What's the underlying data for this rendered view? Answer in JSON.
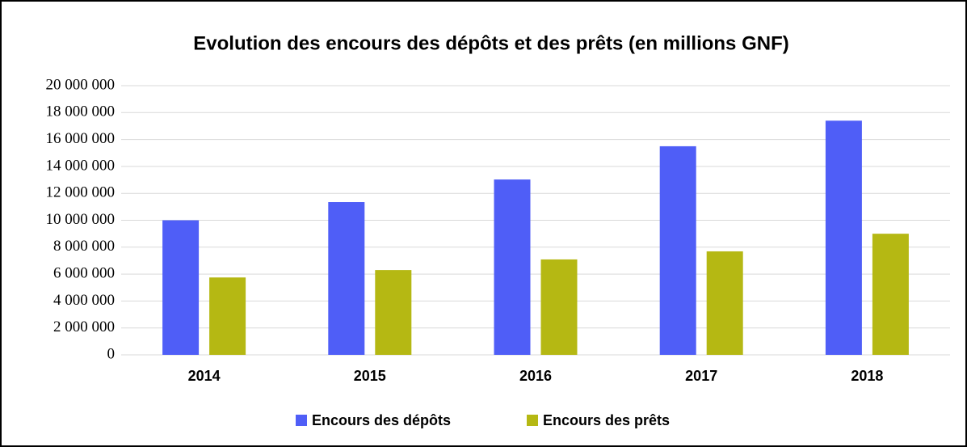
{
  "chart_data": {
    "type": "bar",
    "title": "Evolution des encours des dépôts et des prêts (en millions GNF)",
    "categories": [
      "2014",
      "2015",
      "2016",
      "2017",
      "2018"
    ],
    "series": [
      {
        "name": "Encours des dépôts",
        "color": "#4f5ef7",
        "values": [
          10000000,
          11350000,
          13030000,
          15500000,
          17400000
        ]
      },
      {
        "name": "Encours des prêts",
        "color": "#b5b813",
        "values": [
          5750000,
          6300000,
          7090000,
          7690000,
          9000000
        ]
      }
    ],
    "ylim": [
      0,
      20000000
    ],
    "yticks": [
      0,
      {
        "value": 2000000,
        "label": "2 000 000"
      },
      {
        "value": 4000000,
        "label": "4 000 000"
      },
      {
        "value": 6000000,
        "label": "6 000 000"
      },
      {
        "value": 8000000,
        "label": "8 000 000"
      },
      {
        "value": 10000000,
        "label": "10 000 000"
      },
      {
        "value": 12000000,
        "label": "12 000 000"
      },
      {
        "value": 14000000,
        "label": "14 000 000"
      },
      {
        "value": 16000000,
        "label": "16 000 000"
      },
      {
        "value": 18000000,
        "label": "18 000 000"
      },
      {
        "value": 20000000,
        "label": "20 000 000"
      }
    ],
    "grid": true,
    "legend": "bottom"
  }
}
